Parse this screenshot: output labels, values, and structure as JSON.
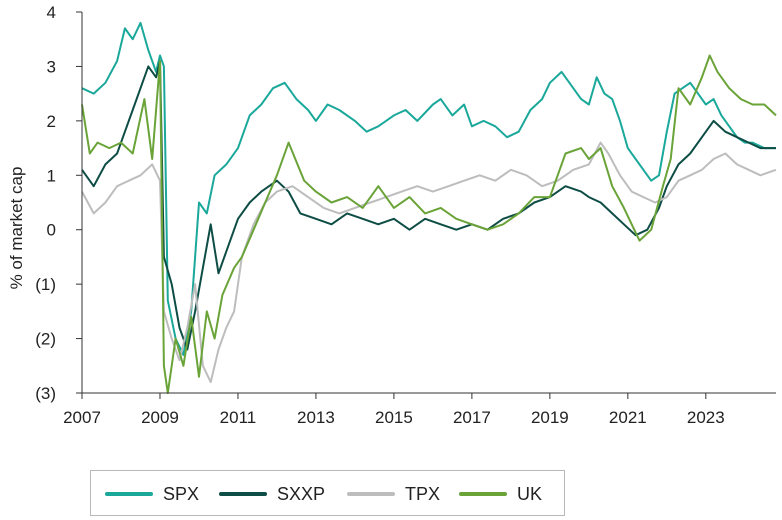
{
  "chart_data": {
    "type": "line",
    "title": "",
    "xlabel": "",
    "ylabel": "% of market cap",
    "xlim": [
      2007,
      2024.8
    ],
    "ylim": [
      -3,
      4
    ],
    "x_ticks": [
      2007,
      2009,
      2011,
      2013,
      2015,
      2017,
      2019,
      2021,
      2023
    ],
    "x_tick_labels": [
      "2007",
      "2009",
      "2011",
      "2013",
      "2015",
      "2017",
      "2019",
      "2021",
      "2023"
    ],
    "y_ticks": [
      4,
      3,
      2,
      1,
      0,
      -1,
      -2,
      -3
    ],
    "y_tick_labels": [
      "4",
      "3",
      "2",
      "1",
      "0",
      "(1)",
      "(2)",
      "(3)"
    ],
    "grid": false,
    "legend_position": "bottom",
    "series": [
      {
        "name": "SPX",
        "color": "#1aa89a",
        "x": [
          2007.0,
          2007.3,
          2007.6,
          2007.9,
          2008.1,
          2008.3,
          2008.5,
          2008.7,
          2008.9,
          2009.0,
          2009.1,
          2009.2,
          2009.4,
          2009.6,
          2009.8,
          2010.0,
          2010.2,
          2010.4,
          2010.7,
          2011.0,
          2011.3,
          2011.6,
          2011.9,
          2012.2,
          2012.5,
          2012.8,
          2013.0,
          2013.3,
          2013.6,
          2014.0,
          2014.3,
          2014.6,
          2015.0,
          2015.3,
          2015.6,
          2016.0,
          2016.2,
          2016.5,
          2016.8,
          2017.0,
          2017.3,
          2017.6,
          2017.9,
          2018.2,
          2018.5,
          2018.8,
          2019.0,
          2019.3,
          2019.6,
          2019.8,
          2020.0,
          2020.2,
          2020.4,
          2020.6,
          2020.8,
          2021.0,
          2021.2,
          2021.4,
          2021.6,
          2021.8,
          2022.0,
          2022.2,
          2022.4,
          2022.6,
          2022.8,
          2023.0,
          2023.2,
          2023.4,
          2023.6,
          2023.8,
          2024.0,
          2024.2,
          2024.5,
          2024.8
        ],
        "values": [
          2.6,
          2.5,
          2.7,
          3.1,
          3.7,
          3.5,
          3.8,
          3.3,
          2.9,
          3.2,
          3.0,
          -1.3,
          -2.0,
          -2.3,
          -1.5,
          0.5,
          0.3,
          1.0,
          1.2,
          1.5,
          2.1,
          2.3,
          2.6,
          2.7,
          2.4,
          2.2,
          2.0,
          2.3,
          2.2,
          2.0,
          1.8,
          1.9,
          2.1,
          2.2,
          2.0,
          2.3,
          2.4,
          2.1,
          2.3,
          1.9,
          2.0,
          1.9,
          1.7,
          1.8,
          2.2,
          2.4,
          2.7,
          2.9,
          2.6,
          2.4,
          2.3,
          2.8,
          2.5,
          2.4,
          2.0,
          1.5,
          1.3,
          1.1,
          0.9,
          1.0,
          1.8,
          2.5,
          2.6,
          2.7,
          2.5,
          2.3,
          2.4,
          2.1,
          1.9,
          1.7,
          1.6,
          1.6,
          1.5,
          1.5
        ]
      },
      {
        "name": "SXXP",
        "color": "#0e4d45",
        "x": [
          2007.0,
          2007.3,
          2007.6,
          2007.9,
          2008.1,
          2008.3,
          2008.5,
          2008.7,
          2008.9,
          2009.0,
          2009.1,
          2009.3,
          2009.5,
          2009.7,
          2009.9,
          2010.1,
          2010.3,
          2010.5,
          2010.8,
          2011.0,
          2011.3,
          2011.6,
          2012.0,
          2012.3,
          2012.6,
          2013.0,
          2013.4,
          2013.8,
          2014.2,
          2014.6,
          2015.0,
          2015.4,
          2015.8,
          2016.2,
          2016.6,
          2017.0,
          2017.4,
          2017.8,
          2018.2,
          2018.6,
          2019.0,
          2019.4,
          2019.8,
          2020.0,
          2020.3,
          2020.6,
          2020.9,
          2021.2,
          2021.5,
          2021.8,
          2022.0,
          2022.3,
          2022.6,
          2022.9,
          2023.2,
          2023.5,
          2023.8,
          2024.1,
          2024.4,
          2024.8
        ],
        "values": [
          1.1,
          0.8,
          1.2,
          1.4,
          1.8,
          2.2,
          2.6,
          3.0,
          2.8,
          3.1,
          -0.5,
          -1.0,
          -1.8,
          -2.2,
          -1.5,
          -0.7,
          0.1,
          -0.8,
          -0.2,
          0.2,
          0.5,
          0.7,
          0.9,
          0.7,
          0.3,
          0.2,
          0.1,
          0.3,
          0.2,
          0.1,
          0.2,
          0.0,
          0.2,
          0.1,
          0.0,
          0.1,
          0.0,
          0.2,
          0.3,
          0.5,
          0.6,
          0.8,
          0.7,
          0.6,
          0.5,
          0.3,
          0.1,
          -0.1,
          0.0,
          0.4,
          0.8,
          1.2,
          1.4,
          1.7,
          2.0,
          1.8,
          1.7,
          1.6,
          1.5,
          1.5
        ]
      },
      {
        "name": "TPX",
        "color": "#bdbdbd",
        "x": [
          2007.0,
          2007.3,
          2007.6,
          2007.9,
          2008.2,
          2008.5,
          2008.8,
          2009.0,
          2009.1,
          2009.3,
          2009.5,
          2009.7,
          2009.9,
          2010.1,
          2010.3,
          2010.5,
          2010.7,
          2010.9,
          2011.1,
          2011.4,
          2011.7,
          2012.0,
          2012.4,
          2012.8,
          2013.2,
          2013.6,
          2014.0,
          2014.4,
          2014.8,
          2015.2,
          2015.6,
          2016.0,
          2016.4,
          2016.8,
          2017.2,
          2017.6,
          2018.0,
          2018.4,
          2018.8,
          2019.2,
          2019.6,
          2020.0,
          2020.3,
          2020.5,
          2020.8,
          2021.1,
          2021.4,
          2021.7,
          2022.0,
          2022.3,
          2022.6,
          2022.9,
          2023.2,
          2023.5,
          2023.8,
          2024.1,
          2024.4,
          2024.8
        ],
        "values": [
          0.7,
          0.3,
          0.5,
          0.8,
          0.9,
          1.0,
          1.2,
          0.9,
          -1.5,
          -2.0,
          -2.4,
          -1.8,
          -1.0,
          -2.5,
          -2.8,
          -2.2,
          -1.8,
          -1.5,
          -0.5,
          0.1,
          0.5,
          0.7,
          0.8,
          0.6,
          0.4,
          0.3,
          0.4,
          0.5,
          0.6,
          0.7,
          0.8,
          0.7,
          0.8,
          0.9,
          1.0,
          0.9,
          1.1,
          1.0,
          0.8,
          0.9,
          1.1,
          1.2,
          1.6,
          1.4,
          1.0,
          0.7,
          0.6,
          0.5,
          0.6,
          0.9,
          1.0,
          1.1,
          1.3,
          1.4,
          1.2,
          1.1,
          1.0,
          1.1
        ]
      },
      {
        "name": "UK",
        "color": "#6aa338",
        "x": [
          2007.0,
          2007.2,
          2007.4,
          2007.7,
          2008.0,
          2008.3,
          2008.6,
          2008.8,
          2008.9,
          2009.0,
          2009.1,
          2009.2,
          2009.4,
          2009.6,
          2009.8,
          2010.0,
          2010.2,
          2010.4,
          2010.6,
          2010.9,
          2011.1,
          2011.4,
          2011.7,
          2012.0,
          2012.3,
          2012.7,
          2013.0,
          2013.4,
          2013.8,
          2014.2,
          2014.6,
          2015.0,
          2015.4,
          2015.8,
          2016.2,
          2016.6,
          2017.0,
          2017.4,
          2017.8,
          2018.2,
          2018.6,
          2019.0,
          2019.4,
          2019.8,
          2020.0,
          2020.3,
          2020.6,
          2020.9,
          2021.1,
          2021.3,
          2021.6,
          2021.9,
          2022.1,
          2022.3,
          2022.6,
          2022.9,
          2023.1,
          2023.3,
          2023.6,
          2023.9,
          2024.2,
          2024.5,
          2024.8
        ],
        "values": [
          2.3,
          1.4,
          1.6,
          1.5,
          1.6,
          1.4,
          2.4,
          1.3,
          2.2,
          3.1,
          -2.5,
          -3.0,
          -2.0,
          -2.5,
          -1.6,
          -2.7,
          -1.5,
          -2.0,
          -1.2,
          -0.7,
          -0.5,
          0.0,
          0.5,
          1.0,
          1.6,
          0.9,
          0.7,
          0.5,
          0.6,
          0.4,
          0.8,
          0.4,
          0.6,
          0.3,
          0.4,
          0.2,
          0.1,
          0.0,
          0.1,
          0.3,
          0.6,
          0.6,
          1.4,
          1.5,
          1.3,
          1.5,
          0.8,
          0.4,
          0.1,
          -0.2,
          0.0,
          0.8,
          1.3,
          2.6,
          2.3,
          2.8,
          3.2,
          2.9,
          2.6,
          2.4,
          2.3,
          2.3,
          2.1
        ]
      }
    ]
  }
}
